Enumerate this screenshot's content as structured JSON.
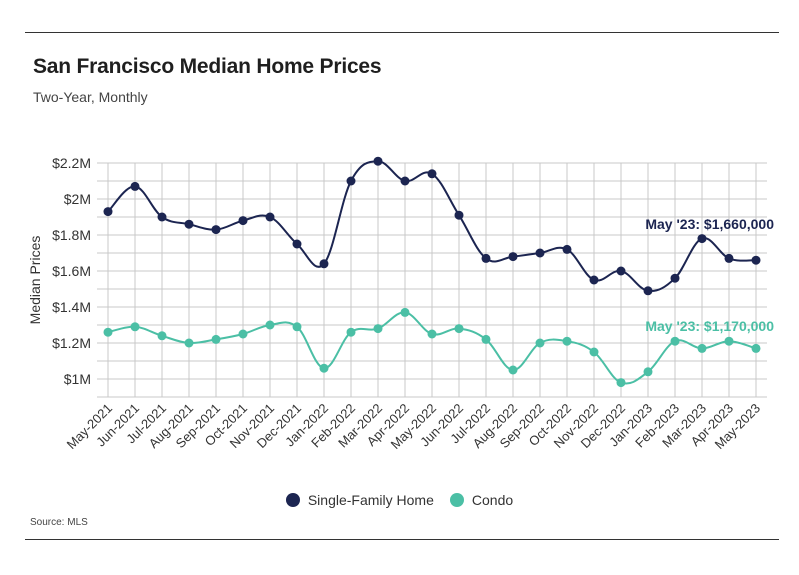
{
  "title": "San Francisco Median Home Prices",
  "subtitle": "Two-Year, Monthly",
  "source": "Source:  MLS",
  "chart_data": {
    "type": "line",
    "title": "San Francisco Median Home Prices",
    "subtitle": "Two-Year, Monthly",
    "xlabel": "",
    "ylabel": "Median Prices",
    "ylim": [
      900000,
      2200000
    ],
    "yticks": [
      1000000,
      1200000,
      1400000,
      1600000,
      1800000,
      2000000,
      2200000
    ],
    "ytick_labels": [
      "$1M",
      "$1.2M",
      "$1.4M",
      "$1.6M",
      "$1.8M",
      "$2M",
      "$2.2M"
    ],
    "grid": true,
    "legend_position": "bottom",
    "categories": [
      "May-2021",
      "Jun-2021",
      "Jul-2021",
      "Aug-2021",
      "Sep-2021",
      "Oct-2021",
      "Nov-2021",
      "Dec-2021",
      "Jan-2022",
      "Feb-2022",
      "Mar-2022",
      "Apr-2022",
      "May-2022",
      "Jun-2022",
      "Jul-2022",
      "Aug-2022",
      "Sep-2022",
      "Oct-2022",
      "Nov-2022",
      "Dec-2022",
      "Jan-2023",
      "Feb-2023",
      "Mar-2023",
      "Apr-2023",
      "May-2023"
    ],
    "series": [
      {
        "name": "Single-Family Home",
        "color": "#1c2551",
        "values": [
          1930000,
          2070000,
          1900000,
          1860000,
          1830000,
          1880000,
          1900000,
          1750000,
          1640000,
          2100000,
          2210000,
          2100000,
          2140000,
          1910000,
          1670000,
          1680000,
          1700000,
          1720000,
          1550000,
          1600000,
          1490000,
          1560000,
          1780000,
          1670000,
          1660000
        ],
        "annotation": "May '23: $1,660,000"
      },
      {
        "name": "Condo",
        "color": "#4bbfa5",
        "values": [
          1260000,
          1290000,
          1240000,
          1200000,
          1220000,
          1250000,
          1300000,
          1290000,
          1060000,
          1260000,
          1280000,
          1370000,
          1250000,
          1280000,
          1220000,
          1050000,
          1200000,
          1210000,
          1150000,
          980000,
          1040000,
          1210000,
          1170000,
          1210000,
          1170000
        ],
        "annotation": "May '23: $1,170,000"
      }
    ]
  }
}
